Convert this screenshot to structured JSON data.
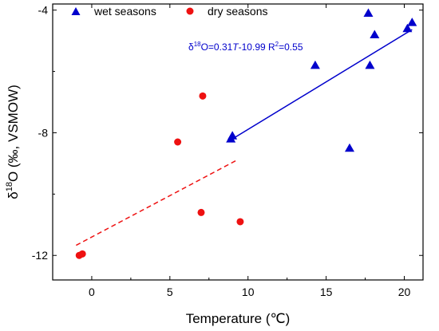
{
  "chart_data": {
    "type": "scatter",
    "xlabel": "Temperature (℃)",
    "ylabel_prefix": "δ",
    "ylabel_sup": "18",
    "ylabel_rest": "O (‰, VSMOW)",
    "xlim": [
      -2.5,
      21.2
    ],
    "ylim": [
      -12.8,
      -3.8
    ],
    "x_ticks": [
      0,
      5,
      10,
      15,
      20
    ],
    "y_ticks": [
      -12,
      -8,
      -4
    ],
    "legend": {
      "placement": "top-left"
    },
    "series": [
      {
        "name": "wet seasons",
        "marker": "triangle",
        "color": "#0000cc",
        "points": [
          [
            8.9,
            -8.2
          ],
          [
            9.0,
            -8.1
          ],
          [
            14.3,
            -5.8
          ],
          [
            16.5,
            -8.5
          ],
          [
            17.7,
            -4.1
          ],
          [
            17.8,
            -5.8
          ],
          [
            18.1,
            -4.8
          ],
          [
            20.2,
            -4.6
          ],
          [
            20.5,
            -4.4
          ]
        ]
      },
      {
        "name": "dry seasons",
        "marker": "circle",
        "color": "#ee1111",
        "points": [
          [
            -0.8,
            -12.0
          ],
          [
            -0.6,
            -11.95
          ],
          [
            5.5,
            -8.3
          ],
          [
            7.1,
            -6.8
          ],
          [
            7.0,
            -10.6
          ],
          [
            9.5,
            -10.9
          ]
        ]
      }
    ],
    "fits": [
      {
        "series": "wet seasons",
        "style": "solid",
        "color": "#0000cc",
        "slope": 0.31,
        "intercept": -10.99,
        "x_range": [
          8.7,
          20.5
        ]
      },
      {
        "series": "dry seasons",
        "style": "dashed",
        "color": "#ee1111",
        "slope": 0.27,
        "intercept": -11.4,
        "x_range": [
          -1.0,
          9.2
        ]
      }
    ],
    "annotation": {
      "pre": "δ",
      "sup1": "18",
      "mid": "O=0.31",
      "var": "T",
      "mid2": "-10.99 R",
      "sup2": "2",
      "post": "=0.55",
      "color": "#0000cc"
    }
  }
}
